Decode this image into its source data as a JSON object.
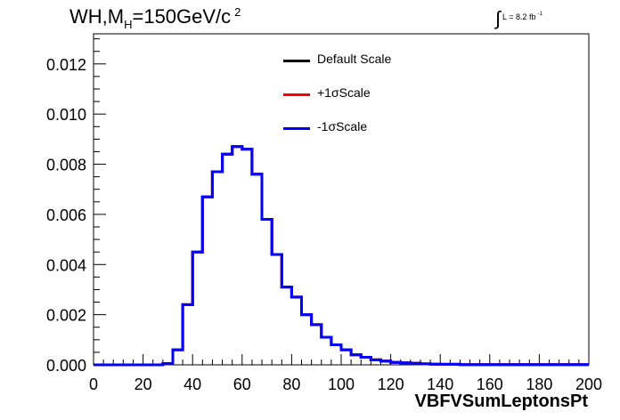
{
  "title": {
    "prefix": "WH,M",
    "sub": "H",
    "suffix": "=150GeV/c",
    "sup": "2"
  },
  "luminosity": {
    "integral": "∫",
    "text": "L = 8.2 fb",
    "sup": "-1"
  },
  "legend": [
    {
      "label": "Default Scale",
      "color": "#000000"
    },
    {
      "label": "+1σScale",
      "color": "#ff0000"
    },
    {
      "label": "-1σScale",
      "color": "#0000ff"
    }
  ],
  "chart_data": {
    "type": "line",
    "xlabel": "VBFVSumLeptonsPt",
    "ylabel": "",
    "xlim": [
      0,
      200
    ],
    "ylim": [
      0,
      0.0132
    ],
    "x_ticks": [
      0,
      20,
      40,
      60,
      80,
      100,
      120,
      140,
      160,
      180,
      200
    ],
    "x_tick_labels": [
      "0",
      "20",
      "40",
      "60",
      "80",
      "100",
      "120",
      "140",
      "160",
      "180",
      "200"
    ],
    "y_ticks": [
      0,
      0.002,
      0.004,
      0.006,
      0.008,
      0.01,
      0.012
    ],
    "y_tick_labels": [
      "0.000",
      "0.002",
      "0.004",
      "0.006",
      "0.008",
      "0.010",
      "0.012"
    ],
    "bin_width": 4,
    "bin_edges_start": 0,
    "series": [
      {
        "name": "Default Scale",
        "color": "#000000",
        "values": [
          0,
          0,
          0,
          0,
          0,
          0,
          0,
          5e-05,
          0.0006,
          0.0024,
          0.0045,
          0.0067,
          0.0077,
          0.0084,
          0.0087,
          0.0086,
          0.0076,
          0.0058,
          0.0044,
          0.0031,
          0.0027,
          0.002,
          0.0016,
          0.0011,
          0.0008,
          0.0006,
          0.0004,
          0.0003,
          0.0002,
          0.00015,
          0.0001,
          8e-05,
          6e-05,
          4e-05,
          3e-05,
          2e-05,
          2e-05,
          1e-05,
          1e-05,
          1e-05,
          1e-05,
          1e-05,
          1e-05,
          1e-05,
          1e-05,
          1e-05,
          1e-05,
          1e-05,
          1e-05,
          1e-05
        ]
      },
      {
        "name": "+1σScale",
        "color": "#ff0000",
        "values": [
          0,
          0,
          0,
          0,
          0,
          0,
          0,
          5e-05,
          0.0006,
          0.0024,
          0.0045,
          0.0067,
          0.0077,
          0.0084,
          0.0087,
          0.0086,
          0.0076,
          0.0058,
          0.0044,
          0.0031,
          0.0027,
          0.002,
          0.0016,
          0.0011,
          0.0008,
          0.0006,
          0.0004,
          0.0003,
          0.0002,
          0.00015,
          0.0001,
          8e-05,
          6e-05,
          4e-05,
          3e-05,
          2e-05,
          2e-05,
          1e-05,
          1e-05,
          1e-05,
          1e-05,
          1e-05,
          1e-05,
          1e-05,
          1e-05,
          1e-05,
          1e-05,
          1e-05,
          1e-05,
          1e-05
        ]
      },
      {
        "name": "-1σScale",
        "color": "#0000ff",
        "values": [
          0,
          0,
          0,
          0,
          0,
          0,
          0,
          5e-05,
          0.0006,
          0.0024,
          0.0045,
          0.0067,
          0.0077,
          0.0084,
          0.0087,
          0.0086,
          0.0076,
          0.0058,
          0.0044,
          0.0031,
          0.0027,
          0.002,
          0.0016,
          0.0011,
          0.0008,
          0.0006,
          0.0004,
          0.0003,
          0.0002,
          0.00015,
          0.0001,
          8e-05,
          6e-05,
          4e-05,
          3e-05,
          2e-05,
          2e-05,
          1e-05,
          1e-05,
          1e-05,
          1e-05,
          1e-05,
          1e-05,
          1e-05,
          1e-05,
          1e-05,
          1e-05,
          1e-05,
          1e-05,
          1e-05
        ]
      }
    ]
  }
}
